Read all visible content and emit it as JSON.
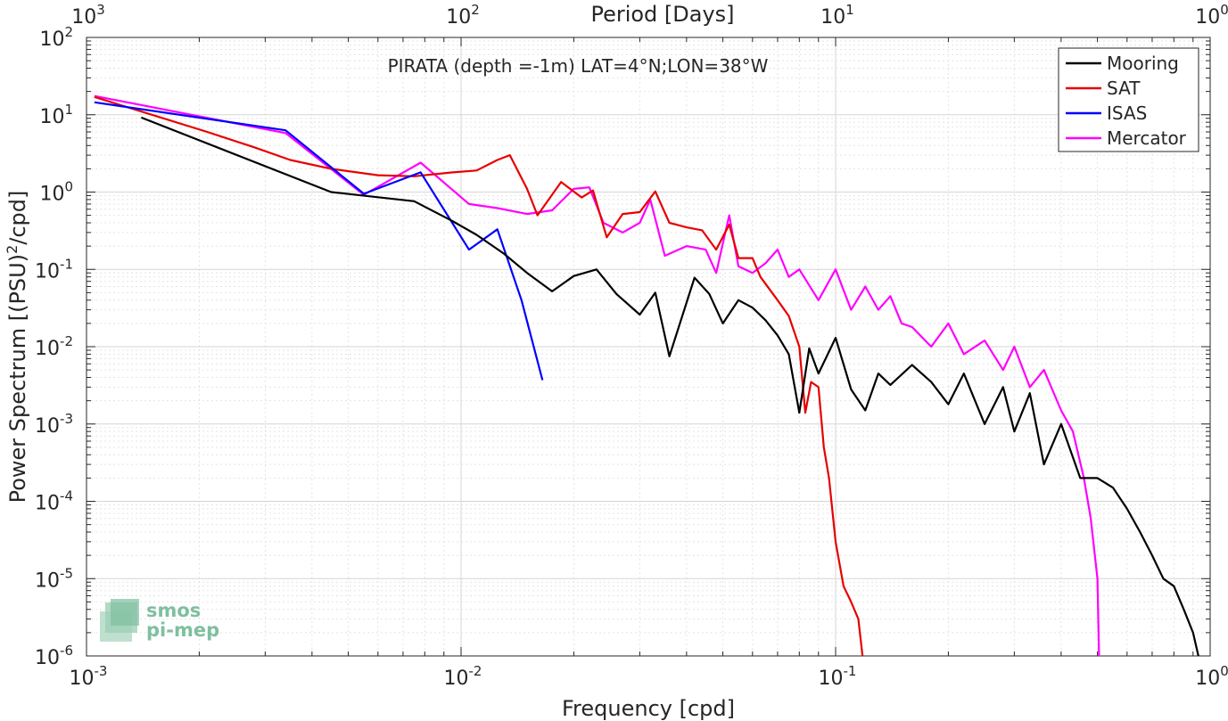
{
  "chart_data": {
    "type": "line",
    "title": "",
    "xlabel": "Frequency [cpd]",
    "ylabel": "Power Spectrum [(PSU)2/cpd]",
    "top_xlabel": "Period [Days]",
    "x_scale": "log",
    "y_scale": "log",
    "xlim": [
      0.001,
      1
    ],
    "ylim": [
      1e-06,
      100
    ],
    "x_ticks": [
      {
        "value": 0.001,
        "label": "10",
        "exp": "-3"
      },
      {
        "value": 0.01,
        "label": "10",
        "exp": "-2"
      },
      {
        "value": 0.1,
        "label": "10",
        "exp": "-1"
      },
      {
        "value": 1,
        "label": "10",
        "exp": "0"
      }
    ],
    "top_ticks": [
      {
        "value": 0.001,
        "label": "10",
        "exp": "3"
      },
      {
        "value": 0.01,
        "label": "10",
        "exp": "2"
      },
      {
        "value": 0.1,
        "label": "10",
        "exp": "1"
      },
      {
        "value": 1,
        "label": "10",
        "exp": "0"
      }
    ],
    "y_ticks": [
      {
        "value": 100,
        "label": "10",
        "exp": "2"
      },
      {
        "value": 10,
        "label": "10",
        "exp": "1"
      },
      {
        "value": 1,
        "label": "10",
        "exp": "0"
      },
      {
        "value": 0.1,
        "label": "10",
        "exp": "-1"
      },
      {
        "value": 0.01,
        "label": "10",
        "exp": "-2"
      },
      {
        "value": 0.001,
        "label": "10",
        "exp": "-3"
      },
      {
        "value": 0.0001,
        "label": "10",
        "exp": "-4"
      },
      {
        "value": 1e-05,
        "label": "10",
        "exp": "-5"
      },
      {
        "value": 1e-06,
        "label": "10",
        "exp": "-6"
      }
    ],
    "grid": true,
    "legend_position": "top-right",
    "annotation": "PIRATA (depth =-1m) LAT=4°N;LON=38°W",
    "series": [
      {
        "name": "Mooring",
        "color": "#000000",
        "points": [
          [
            0.0014,
            9.2
          ],
          [
            0.0045,
            1.0
          ],
          [
            0.0075,
            0.76
          ],
          [
            0.0095,
            0.42
          ],
          [
            0.011,
            0.28
          ],
          [
            0.013,
            0.16
          ],
          [
            0.015,
            0.09
          ],
          [
            0.0175,
            0.052
          ],
          [
            0.02,
            0.082
          ],
          [
            0.023,
            0.1
          ],
          [
            0.026,
            0.048
          ],
          [
            0.03,
            0.026
          ],
          [
            0.033,
            0.05
          ],
          [
            0.036,
            0.0075
          ],
          [
            0.042,
            0.078
          ],
          [
            0.046,
            0.048
          ],
          [
            0.05,
            0.02
          ],
          [
            0.055,
            0.04
          ],
          [
            0.06,
            0.032
          ],
          [
            0.065,
            0.022
          ],
          [
            0.07,
            0.014
          ],
          [
            0.075,
            0.008
          ],
          [
            0.08,
            0.0014
          ],
          [
            0.085,
            0.0095
          ],
          [
            0.09,
            0.0045
          ],
          [
            0.1,
            0.013
          ],
          [
            0.11,
            0.0028
          ],
          [
            0.12,
            0.0015
          ],
          [
            0.13,
            0.0045
          ],
          [
            0.14,
            0.0032
          ],
          [
            0.16,
            0.0058
          ],
          [
            0.18,
            0.0035
          ],
          [
            0.2,
            0.0018
          ],
          [
            0.22,
            0.0045
          ],
          [
            0.25,
            0.001
          ],
          [
            0.28,
            0.003
          ],
          [
            0.3,
            0.0008
          ],
          [
            0.33,
            0.0025
          ],
          [
            0.36,
            0.0003
          ],
          [
            0.4,
            0.001
          ],
          [
            0.45,
            0.0002
          ],
          [
            0.5,
            0.0002
          ],
          [
            0.55,
            0.00015
          ],
          [
            0.6,
            8e-05
          ],
          [
            0.65,
            4e-05
          ],
          [
            0.7,
            2e-05
          ],
          [
            0.75,
            1e-05
          ],
          [
            0.8,
            8e-06
          ],
          [
            0.85,
            4e-06
          ],
          [
            0.9,
            2e-06
          ],
          [
            0.93,
            1e-06
          ]
        ]
      },
      {
        "name": "SAT",
        "color": "#e60000",
        "points": [
          [
            0.00105,
            17.0
          ],
          [
            0.0021,
            6.0
          ],
          [
            0.0028,
            3.8
          ],
          [
            0.0035,
            2.6
          ],
          [
            0.0045,
            2.0
          ],
          [
            0.006,
            1.65
          ],
          [
            0.0075,
            1.6
          ],
          [
            0.0095,
            1.8
          ],
          [
            0.011,
            1.9
          ],
          [
            0.0125,
            2.6
          ],
          [
            0.0135,
            3.0
          ],
          [
            0.015,
            1.1
          ],
          [
            0.016,
            0.5
          ],
          [
            0.0185,
            1.35
          ],
          [
            0.021,
            0.85
          ],
          [
            0.0225,
            1.05
          ],
          [
            0.0245,
            0.26
          ],
          [
            0.027,
            0.52
          ],
          [
            0.03,
            0.55
          ],
          [
            0.033,
            1.02
          ],
          [
            0.036,
            0.4
          ],
          [
            0.04,
            0.35
          ],
          [
            0.044,
            0.32
          ],
          [
            0.048,
            0.18
          ],
          [
            0.052,
            0.38
          ],
          [
            0.055,
            0.14
          ],
          [
            0.06,
            0.14
          ],
          [
            0.063,
            0.08
          ],
          [
            0.07,
            0.04
          ],
          [
            0.075,
            0.025
          ],
          [
            0.08,
            0.01
          ],
          [
            0.083,
            0.0014
          ],
          [
            0.086,
            0.0035
          ],
          [
            0.09,
            0.003
          ],
          [
            0.093,
            0.0005
          ],
          [
            0.096,
            0.0002
          ],
          [
            0.1,
            3e-05
          ],
          [
            0.105,
            8e-06
          ],
          [
            0.11,
            5e-06
          ],
          [
            0.115,
            3e-06
          ],
          [
            0.118,
            1e-06
          ]
        ]
      },
      {
        "name": "ISAS",
        "color": "#0000ff",
        "points": [
          [
            0.00105,
            14.5
          ],
          [
            0.0034,
            6.3
          ],
          [
            0.0055,
            0.95
          ],
          [
            0.0078,
            1.8
          ],
          [
            0.0105,
            0.18
          ],
          [
            0.0125,
            0.33
          ],
          [
            0.0145,
            0.04
          ],
          [
            0.0165,
            0.0037
          ]
        ]
      },
      {
        "name": "Mercator",
        "color": "#ff00ff",
        "points": [
          [
            0.00105,
            17.5
          ],
          [
            0.0034,
            5.8
          ],
          [
            0.0055,
            0.92
          ],
          [
            0.0078,
            2.4
          ],
          [
            0.0105,
            0.7
          ],
          [
            0.0125,
            0.62
          ],
          [
            0.015,
            0.52
          ],
          [
            0.0175,
            0.58
          ],
          [
            0.02,
            1.1
          ],
          [
            0.022,
            1.15
          ],
          [
            0.024,
            0.4
          ],
          [
            0.027,
            0.3
          ],
          [
            0.03,
            0.4
          ],
          [
            0.032,
            0.8
          ],
          [
            0.035,
            0.15
          ],
          [
            0.04,
            0.2
          ],
          [
            0.045,
            0.18
          ],
          [
            0.048,
            0.09
          ],
          [
            0.052,
            0.5
          ],
          [
            0.055,
            0.11
          ],
          [
            0.06,
            0.09
          ],
          [
            0.065,
            0.12
          ],
          [
            0.07,
            0.18
          ],
          [
            0.075,
            0.08
          ],
          [
            0.08,
            0.1
          ],
          [
            0.09,
            0.04
          ],
          [
            0.1,
            0.1
          ],
          [
            0.11,
            0.03
          ],
          [
            0.12,
            0.06
          ],
          [
            0.13,
            0.03
          ],
          [
            0.14,
            0.045
          ],
          [
            0.15,
            0.02
          ],
          [
            0.16,
            0.018
          ],
          [
            0.18,
            0.01
          ],
          [
            0.2,
            0.02
          ],
          [
            0.22,
            0.008
          ],
          [
            0.25,
            0.012
          ],
          [
            0.28,
            0.005
          ],
          [
            0.3,
            0.01
          ],
          [
            0.33,
            0.003
          ],
          [
            0.36,
            0.005
          ],
          [
            0.4,
            0.0015
          ],
          [
            0.43,
            0.0008
          ],
          [
            0.46,
            0.0002
          ],
          [
            0.48,
            6e-05
          ],
          [
            0.5,
            1e-05
          ],
          [
            0.505,
            1e-06
          ]
        ]
      }
    ]
  },
  "logo": {
    "line1": "smos",
    "line2": "pi-mep"
  }
}
